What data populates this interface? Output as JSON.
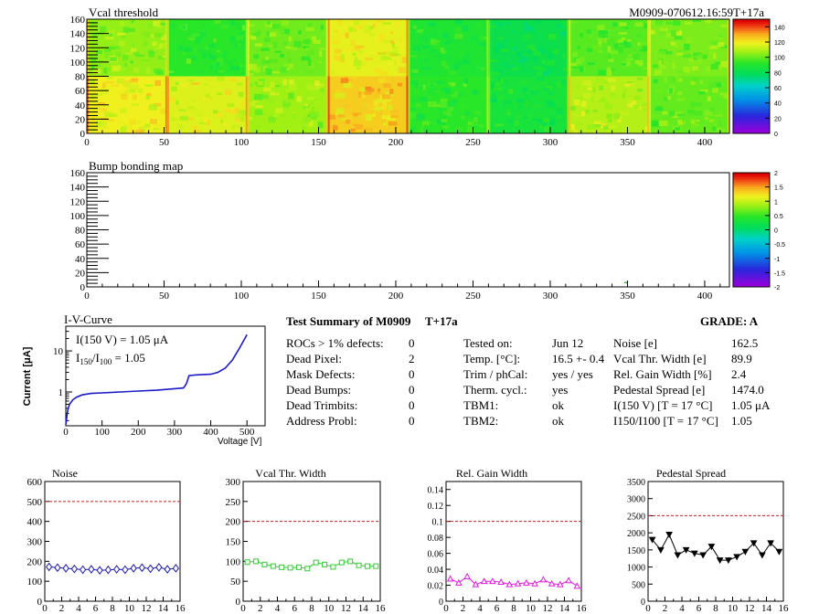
{
  "threshold_map": {
    "title": "Vcal threshold",
    "module_label": "M0909-070612.16:59T+17a",
    "x_ticks": [
      "0",
      "50",
      "100",
      "150",
      "200",
      "250",
      "300",
      "350",
      "400"
    ],
    "y_ticks": [
      "0",
      "20",
      "40",
      "60",
      "80",
      "100",
      "120",
      "140",
      "160"
    ],
    "colorbar_ticks": [
      "0",
      "20",
      "40",
      "60",
      "80",
      "100",
      "120",
      "140"
    ]
  },
  "bump_map": {
    "title": "Bump bonding map",
    "x_ticks": [
      "0",
      "50",
      "100",
      "150",
      "200",
      "250",
      "300",
      "350",
      "400"
    ],
    "y_ticks": [
      "0",
      "20",
      "40",
      "60",
      "80",
      "100",
      "120",
      "140",
      "160"
    ],
    "colorbar_ticks": [
      "-2",
      "-1.5",
      "-1",
      "-0.5",
      "0",
      "0.5",
      "1",
      "1.5",
      "2"
    ]
  },
  "iv_curve": {
    "title": "I-V-Curve",
    "ylabel": "Current [μA]",
    "xlabel": "Voltage [V]",
    "x_ticks": [
      "0",
      "100",
      "200",
      "300",
      "400",
      "500"
    ],
    "y_ticks": [
      "1",
      "10"
    ],
    "annotation_1": "I(150 V) = 1.05 μA",
    "annotation_2_lhs": "I",
    "annotation_2_sub1": "150",
    "annotation_2_sub2": "100",
    "annotation_2_rhs": " =  1.05"
  },
  "summary": {
    "title": "Test Summary of M0909",
    "tag": "T+17a",
    "grade": "GRADE:  A",
    "defects": [
      {
        "label": "ROCs > 1% defects:",
        "value": "0"
      },
      {
        "label": "Dead Pixel:",
        "value": "2"
      },
      {
        "label": "Mask Defects:",
        "value": "0"
      },
      {
        "label": "Dead Bumps:",
        "value": "0"
      },
      {
        "label": "Dead Trimbits:",
        "value": "0"
      },
      {
        "label": "Address Probl:",
        "value": "0"
      }
    ],
    "conditions": [
      {
        "label": "Tested on:",
        "value": "Jun 12"
      },
      {
        "label": "Temp. [°C]:",
        "value": "16.5 +- 0.4"
      },
      {
        "label": "Trim / phCal:",
        "value": "yes / yes"
      },
      {
        "label": "Therm. cycl.:",
        "value": "yes"
      },
      {
        "label": "TBM1:",
        "value": "ok"
      },
      {
        "label": "TBM2:",
        "value": "ok"
      }
    ],
    "results": [
      {
        "label": "Noise [e]",
        "value": "162.5"
      },
      {
        "label": "Vcal Thr. Width [e]",
        "value": "89.9"
      },
      {
        "label": "Rel. Gain Width [%]",
        "value": "2.4"
      },
      {
        "label": "Pedestal Spread [e]",
        "value": "1474.0"
      },
      {
        "label": "I(150 V) [T = 17 °C]",
        "value": "1.05 μA"
      },
      {
        "label": "I150/I100  [T = 17 °C]",
        "value": "1.05"
      }
    ]
  },
  "colors": {
    "noise": "#1a1ab0",
    "vcal": "#33cc33",
    "gain": "#e619e6",
    "pedestal": "#000000",
    "limit": "#c81e1e",
    "iv": "#1a1ac8"
  },
  "chart_data": [
    {
      "type": "line",
      "title": "Noise",
      "x": [
        0,
        1,
        2,
        3,
        4,
        5,
        6,
        7,
        8,
        9,
        10,
        11,
        12,
        13,
        14,
        15
      ],
      "xlim": [
        0,
        16
      ],
      "x_ticks": [
        "0",
        "2",
        "4",
        "6",
        "8",
        "10",
        "12",
        "14",
        "16"
      ],
      "ylim": [
        0,
        600
      ],
      "y_ticks": [
        "0",
        "100",
        "200",
        "300",
        "400",
        "500",
        "600"
      ],
      "limit": 500,
      "series": [
        {
          "values": [
            172,
            168,
            165,
            162,
            158,
            160,
            155,
            157,
            160,
            158,
            165,
            168,
            163,
            170,
            160,
            165
          ]
        }
      ]
    },
    {
      "type": "line",
      "title": "Vcal Thr. Width",
      "x": [
        0,
        1,
        2,
        3,
        4,
        5,
        6,
        7,
        8,
        9,
        10,
        11,
        12,
        13,
        14,
        15
      ],
      "xlim": [
        0,
        16
      ],
      "x_ticks": [
        "0",
        "2",
        "4",
        "6",
        "8",
        "10",
        "12",
        "14",
        "16"
      ],
      "ylim": [
        0,
        300
      ],
      "y_ticks": [
        "0",
        "50",
        "100",
        "150",
        "200",
        "250",
        "300"
      ],
      "limit": 200,
      "series": [
        {
          "values": [
            98,
            100,
            92,
            88,
            85,
            84,
            85,
            82,
            97,
            92,
            86,
            97,
            100,
            90,
            88,
            88
          ]
        }
      ]
    },
    {
      "type": "line",
      "title": "Rel. Gain Width",
      "x": [
        0,
        1,
        2,
        3,
        4,
        5,
        6,
        7,
        8,
        9,
        10,
        11,
        12,
        13,
        14,
        15
      ],
      "xlim": [
        0,
        16
      ],
      "x_ticks": [
        "0",
        "2",
        "4",
        "6",
        "8",
        "10",
        "12",
        "14",
        "16"
      ],
      "ylim": [
        0,
        0.15
      ],
      "y_ticks": [
        "0",
        "0.02",
        "0.04",
        "0.06",
        "0.08",
        "0.1",
        "0.12",
        "0.14"
      ],
      "limit": 0.1,
      "series": [
        {
          "values": [
            0.028,
            0.023,
            0.031,
            0.021,
            0.025,
            0.025,
            0.024,
            0.021,
            0.022,
            0.023,
            0.022,
            0.027,
            0.022,
            0.021,
            0.026,
            0.019
          ]
        }
      ]
    },
    {
      "type": "line",
      "title": "Pedestal Spread",
      "x": [
        0,
        1,
        2,
        3,
        4,
        5,
        6,
        7,
        8,
        9,
        10,
        11,
        12,
        13,
        14,
        15
      ],
      "xlim": [
        0,
        16
      ],
      "x_ticks": [
        "0",
        "2",
        "4",
        "6",
        "8",
        "10",
        "12",
        "14",
        "16"
      ],
      "ylim": [
        0,
        3500
      ],
      "y_ticks": [
        "0",
        "500",
        "1000",
        "1500",
        "2000",
        "2500",
        "3000",
        "3500"
      ],
      "limit": 2500,
      "series": [
        {
          "values": [
            1800,
            1500,
            1950,
            1350,
            1500,
            1400,
            1350,
            1600,
            1200,
            1200,
            1300,
            1450,
            1700,
            1350,
            1700,
            1450
          ]
        }
      ]
    }
  ]
}
